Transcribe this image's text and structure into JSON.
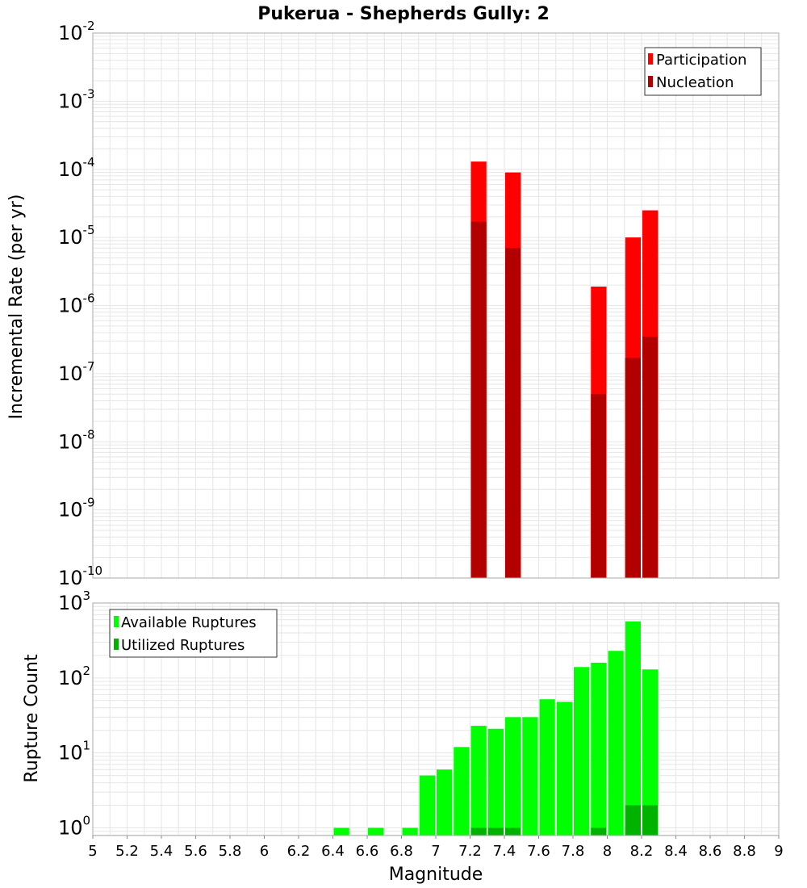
{
  "title": "Pukerua - Shepherds Gully: 2",
  "colors": {
    "participation": "#ff0000",
    "nucleation": "#b20000",
    "available": "#00ff00",
    "utilized": "#00b200",
    "grid": "#e6e6e6",
    "frame": "#aaaaaa"
  },
  "chart_data": [
    {
      "type": "bar",
      "ylabel": "Incremental Rate (per yr)",
      "yscale": "log",
      "ylim": [
        1e-10,
        0.01
      ],
      "xlim": [
        5,
        9
      ],
      "bar_width": 0.1,
      "grid": true,
      "legend_position": "top-right",
      "y_ticks": [
        {
          "base": "10",
          "exp": "-10",
          "value": 1e-10
        },
        {
          "base": "10",
          "exp": "-9",
          "value": 1e-09
        },
        {
          "base": "10",
          "exp": "-8",
          "value": 1e-08
        },
        {
          "base": "10",
          "exp": "-7",
          "value": 1e-07
        },
        {
          "base": "10",
          "exp": "-6",
          "value": 1e-06
        },
        {
          "base": "10",
          "exp": "-5",
          "value": 1e-05
        },
        {
          "base": "10",
          "exp": "-4",
          "value": 0.0001
        },
        {
          "base": "10",
          "exp": "-3",
          "value": 0.001
        },
        {
          "base": "10",
          "exp": "-2",
          "value": 0.01
        }
      ],
      "series": [
        {
          "name": "Participation",
          "color": "#ff0000",
          "x": [
            7.25,
            7.45,
            7.95,
            8.15,
            8.25
          ],
          "values": [
            0.00013,
            9e-05,
            1.9e-06,
            1e-05,
            2.5e-05
          ]
        },
        {
          "name": "Nucleation",
          "color": "#b20000",
          "x": [
            7.25,
            7.45,
            7.95,
            8.15,
            8.25
          ],
          "values": [
            1.7e-05,
            7e-06,
            5e-08,
            1.7e-07,
            3.5e-07
          ]
        }
      ]
    },
    {
      "type": "bar",
      "xlabel": "Magnitude",
      "ylabel": "Rupture Count",
      "yscale": "log",
      "ylim": [
        0.79,
        1000
      ],
      "xlim": [
        5,
        9
      ],
      "bar_width": 0.1,
      "grid": true,
      "legend_position": "top-left",
      "x_ticks": [
        "5",
        "5.2",
        "5.4",
        "5.6",
        "5.8",
        "6",
        "6.2",
        "6.4",
        "6.6",
        "6.8",
        "7",
        "7.2",
        "7.4",
        "7.6",
        "7.8",
        "8",
        "8.2",
        "8.4",
        "8.6",
        "8.8",
        "9"
      ],
      "y_ticks": [
        {
          "base": "10",
          "exp": "0",
          "value": 1
        },
        {
          "base": "10",
          "exp": "1",
          "value": 10
        },
        {
          "base": "10",
          "exp": "2",
          "value": 100
        },
        {
          "base": "10",
          "exp": "3",
          "value": 1000
        }
      ],
      "series": [
        {
          "name": "Available Ruptures",
          "color": "#00ff00",
          "x": [
            6.45,
            6.65,
            6.85,
            6.95,
            7.05,
            7.15,
            7.25,
            7.35,
            7.45,
            7.55,
            7.65,
            7.75,
            7.85,
            7.95,
            8.05,
            8.15,
            8.25
          ],
          "values": [
            1,
            1,
            1,
            5,
            6,
            12,
            23,
            21,
            30,
            30,
            52,
            48,
            140,
            160,
            230,
            570,
            130
          ]
        },
        {
          "name": "Utilized Ruptures",
          "color": "#00b200",
          "x": [
            7.25,
            7.35,
            7.45,
            7.95,
            8.15,
            8.25
          ],
          "values": [
            1,
            1,
            1,
            1,
            2,
            2
          ]
        }
      ]
    }
  ]
}
